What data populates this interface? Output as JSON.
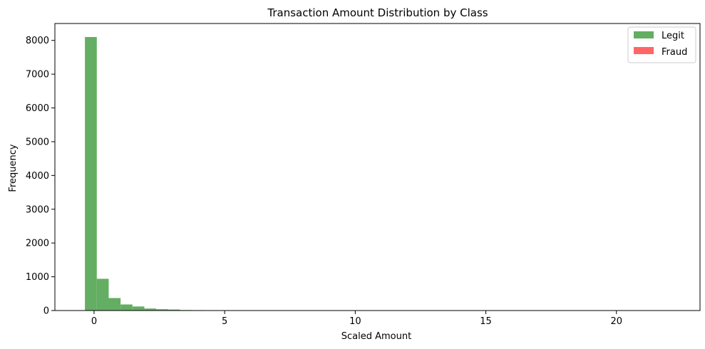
{
  "chart_data": {
    "type": "bar",
    "title": "Transaction Amount Distribution by Class",
    "xlabel": "Scaled Amount",
    "ylabel": "Frequency",
    "xlim": [
      -1.5,
      23.2
    ],
    "ylim": [
      0,
      8500
    ],
    "xticks": [
      0,
      5,
      10,
      15,
      20
    ],
    "yticks": [
      0,
      1000,
      2000,
      3000,
      4000,
      5000,
      6000,
      7000,
      8000
    ],
    "legend_position": "top-right",
    "grid": false,
    "series": [
      {
        "name": "Legit",
        "color": "#63ae63",
        "bin_start": -0.35,
        "bin_width": 0.455,
        "values": [
          8100,
          940,
          370,
          180,
          120,
          60,
          40,
          30,
          15,
          12,
          10,
          8,
          8,
          6,
          6,
          5,
          4,
          3,
          2,
          2,
          1,
          1,
          1,
          1,
          1,
          1,
          0,
          0,
          0,
          0,
          0,
          0,
          0,
          0,
          0,
          0,
          0,
          0,
          0,
          0,
          0,
          0,
          0,
          0,
          0,
          0,
          0,
          0,
          0,
          0
        ]
      },
      {
        "name": "Fraud",
        "color": "#ff6666",
        "bin_start": -0.35,
        "bin_width": 0.455,
        "values": [
          0,
          0,
          0,
          0,
          0,
          0,
          0,
          0,
          0,
          0,
          0,
          0,
          0,
          0,
          0,
          0,
          0,
          0,
          0,
          0,
          0,
          0,
          0,
          0,
          0,
          0,
          0,
          0,
          0,
          0,
          0,
          0,
          0,
          0,
          0,
          0,
          0,
          0,
          0,
          0,
          0,
          0,
          0,
          0,
          0,
          0,
          0,
          0,
          0,
          0
        ]
      }
    ]
  }
}
